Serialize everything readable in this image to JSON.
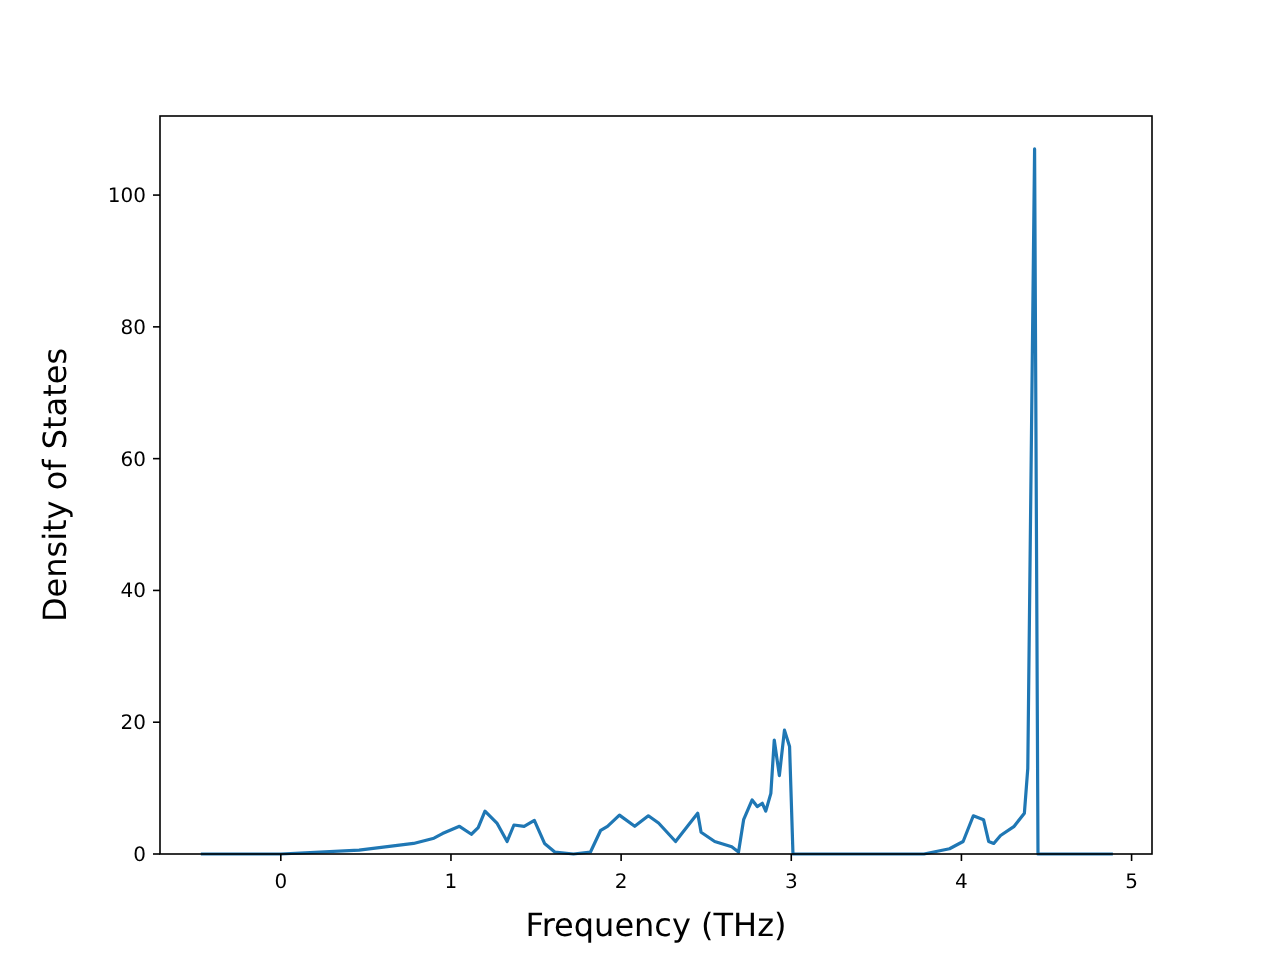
{
  "chart_data": {
    "type": "line",
    "xlabel": "Frequency (THz)",
    "ylabel": "Density of States",
    "xlim": [
      -0.71,
      5.12
    ],
    "ylim": [
      0,
      112
    ],
    "xticks": [
      0,
      1,
      2,
      3,
      4,
      5
    ],
    "yticks": [
      0,
      20,
      40,
      60,
      80,
      100
    ],
    "series": [
      {
        "color": "#1f77b4",
        "x": [
          -0.47,
          0,
          0.46,
          0.78,
          0.9,
          0.95,
          1.05,
          1.12,
          1.16,
          1.2,
          1.27,
          1.33,
          1.37,
          1.43,
          1.49,
          1.55,
          1.61,
          1.72,
          1.82,
          1.88,
          1.92,
          1.99,
          2.08,
          2.16,
          2.22,
          2.32,
          2.39,
          2.45,
          2.47,
          2.55,
          2.65,
          2.69,
          2.72,
          2.77,
          2.8,
          2.83,
          2.85,
          2.88,
          2.9,
          2.93,
          2.96,
          2.99,
          3.01,
          3.78,
          3.93,
          4.01,
          4.07,
          4.13,
          4.16,
          4.19,
          4.23,
          4.31,
          4.37,
          4.39,
          4.43,
          4.45,
          4.89
        ],
        "values": [
          0,
          0,
          0.6,
          1.6,
          2.4,
          3.1,
          4.2,
          3,
          4,
          6.5,
          4.7,
          1.9,
          4.4,
          4.2,
          5.1,
          1.6,
          0.3,
          0,
          0.3,
          3.6,
          4.2,
          5.9,
          4.2,
          5.8,
          4.7,
          1.9,
          4.2,
          6.2,
          3.3,
          1.9,
          1.1,
          0.3,
          5.2,
          8.2,
          7.2,
          7.7,
          6.5,
          9.2,
          17.3,
          11.9,
          18.8,
          16.3,
          0,
          0,
          0.8,
          1.9,
          5.8,
          5.2,
          1.9,
          1.6,
          2.8,
          4.2,
          6.2,
          13,
          107,
          0,
          0
        ]
      }
    ]
  }
}
